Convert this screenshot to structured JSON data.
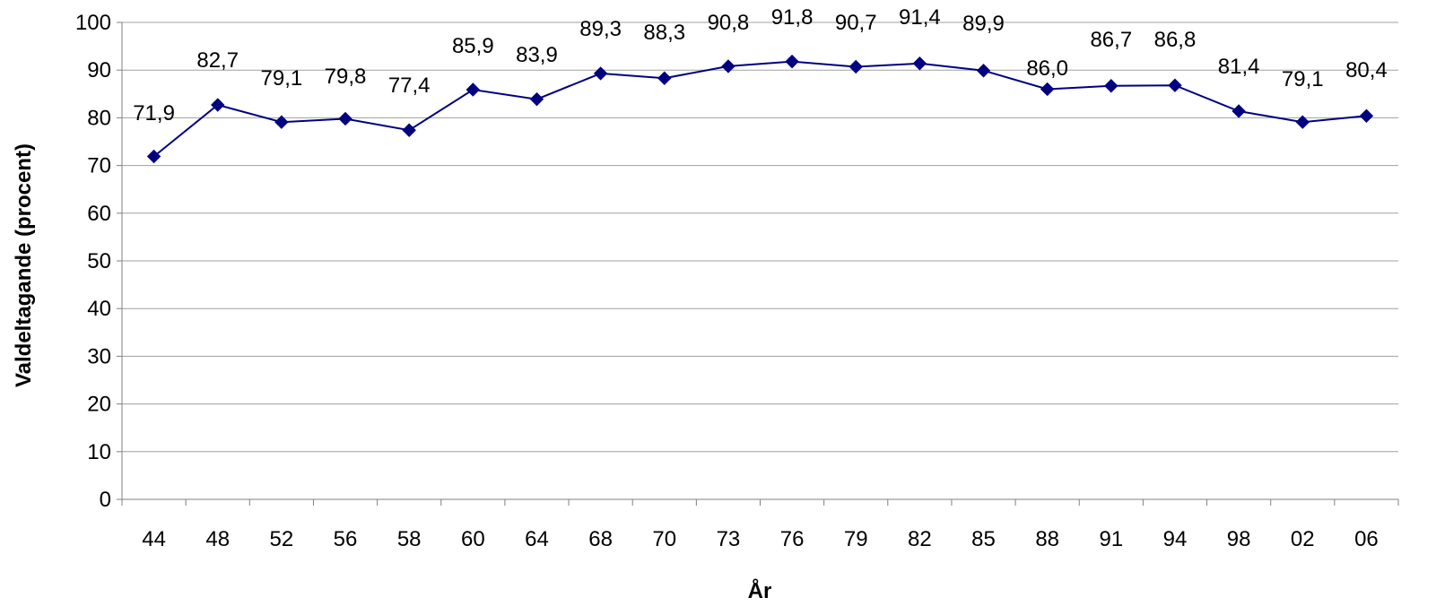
{
  "chart_data": {
    "type": "line",
    "categories": [
      "44",
      "48",
      "52",
      "56",
      "58",
      "60",
      "64",
      "68",
      "70",
      "73",
      "76",
      "79",
      "82",
      "85",
      "88",
      "91",
      "94",
      "98",
      "02",
      "06"
    ],
    "values": [
      71.9,
      82.7,
      79.1,
      79.8,
      77.4,
      85.9,
      83.9,
      89.3,
      88.3,
      90.8,
      91.8,
      90.7,
      91.4,
      89.9,
      86.0,
      86.7,
      86.8,
      81.4,
      79.1,
      80.4
    ],
    "value_labels": [
      "71,9",
      "82,7",
      "79,1",
      "79,8",
      "77,4",
      "85,9",
      "83,9",
      "89,3",
      "88,3",
      "90,8",
      "91,8",
      "90,7",
      "91,4",
      "89,9",
      "86,0",
      "86,7",
      "86,8",
      "81,4",
      "79,1",
      "80,4"
    ],
    "xlabel": "År",
    "ylabel": "Valdeltagande (procent)",
    "ylim": [
      0,
      100
    ],
    "yticks": [
      0,
      10,
      20,
      30,
      40,
      50,
      60,
      70,
      80,
      90,
      100
    ],
    "grid": true,
    "legend": "none",
    "marker": "diamond",
    "colors": {
      "line": "#000080",
      "marker": "#000080",
      "grid": "#a0a0a0",
      "axis": "#808080"
    }
  }
}
